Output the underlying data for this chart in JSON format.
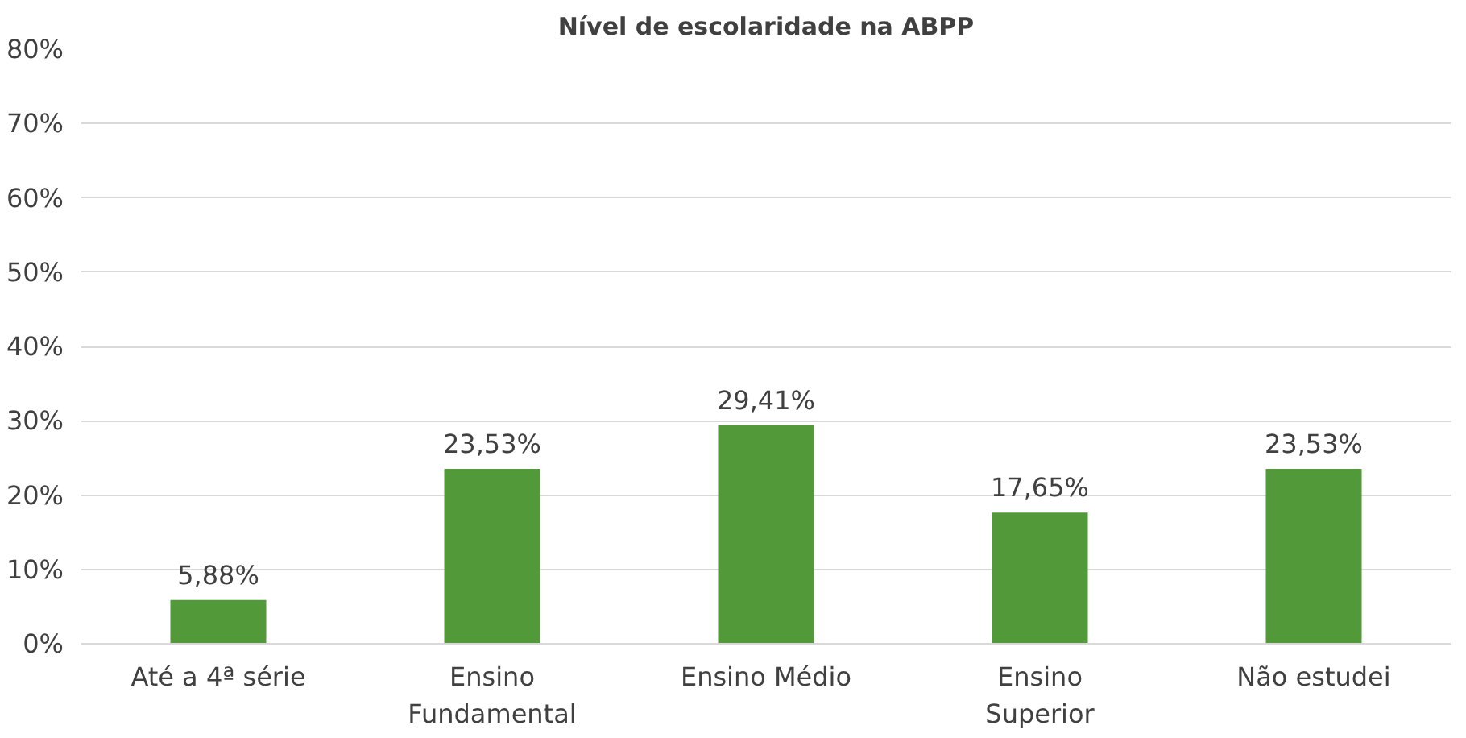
{
  "chart_data": {
    "type": "bar",
    "title": "Nível de escolaridade na ABPP",
    "categories": [
      "Até a 4ª série",
      "Ensino\nFundamental",
      "Ensino Médio",
      "Ensino\nSuperior",
      "Não estudei"
    ],
    "values": [
      5.88,
      23.53,
      29.41,
      17.65,
      23.53
    ],
    "color": "#529a39",
    "value_labels": [
      "5,88%",
      "23,53%",
      "29,41%",
      "17,65%",
      "23,53%"
    ],
    "ylim": [
      0,
      80
    ],
    "yticks": [
      {
        "value": 0,
        "label": "0%"
      },
      {
        "value": 10,
        "label": "10%"
      },
      {
        "value": 20,
        "label": "20%"
      },
      {
        "value": 30,
        "label": "30%"
      },
      {
        "value": 40,
        "label": "40%"
      },
      {
        "value": 50,
        "label": "50%"
      },
      {
        "value": 60,
        "label": "60%"
      },
      {
        "value": 70,
        "label": "70%"
      },
      {
        "value": 80,
        "label": "80%"
      }
    ],
    "grid": "y"
  }
}
